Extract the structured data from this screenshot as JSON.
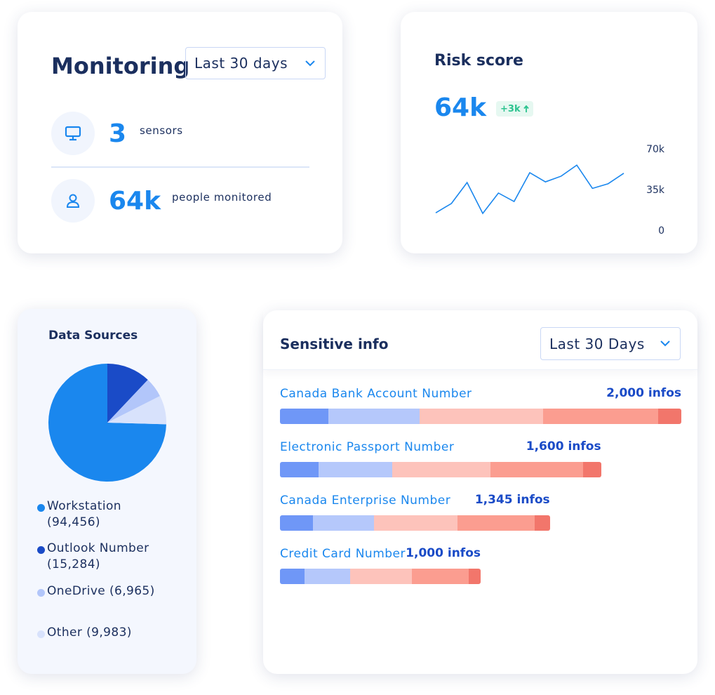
{
  "monitoring": {
    "title": "Monitoring",
    "period": "Last 30 days",
    "stats": [
      {
        "value": "3",
        "label": "sensors"
      },
      {
        "value": "64k",
        "label": "people monitored"
      }
    ]
  },
  "risk_score": {
    "title": "Risk score",
    "value": "64k",
    "change": "+3k"
  },
  "chart_data": [
    {
      "type": "line",
      "categories": [
        null,
        null,
        null,
        null,
        null,
        null,
        null,
        null,
        null,
        null,
        null,
        null,
        null
      ],
      "values": [
        15000,
        23000,
        41000,
        14500,
        32000,
        24700,
        49500,
        41600,
        46500,
        56000,
        36000,
        40000,
        49000
      ],
      "color": "#1a87ee",
      "ylim": [
        0,
        70000
      ],
      "yticks": [
        0,
        {
          "value": 35000,
          "label": "35k"
        },
        {
          "value": 70000,
          "label": "70k"
        }
      ]
    },
    {
      "type": "pie",
      "title": "Data Sources",
      "categories": [
        "Workstation",
        "Outlook Number",
        "OneDrive",
        "Other"
      ],
      "values": [
        94456,
        15284,
        6965,
        9983
      ],
      "value_labels": [
        "(94,456)",
        "(15,284)",
        "(6,965)",
        "(9,983)"
      ],
      "colors": [
        "#1a87ee",
        "#1a4bc7",
        "#b2c6fa",
        "#d8e2fc"
      ]
    },
    {
      "type": "bar",
      "orientation": "horizontal",
      "stacked": true,
      "title": "Sensitive info",
      "period": "Last 30 Days",
      "categories": [
        "Canada Bank Account Number",
        "Electronic Passport Number",
        "Canada Enterprise Number",
        "Credit Card Number"
      ],
      "values": [
        2000,
        1600,
        1345,
        1000
      ],
      "value_labels": [
        "2,000 infos",
        "1,600 infos",
        "1,345 infos",
        "1,000 infos"
      ],
      "xlim": [
        0,
        2000
      ],
      "series": [
        {
          "color": "#6f97f7",
          "values": [
            240,
            194,
            163,
            123
          ]
        },
        {
          "color": "#b5c8fb",
          "values": [
            455,
            366,
            307,
            225
          ]
        },
        {
          "color": "#fdc3bb",
          "values": [
            615,
            490,
            415,
            308
          ]
        },
        {
          "color": "#fb9d90",
          "values": [
            575,
            459,
            386,
            286
          ]
        },
        {
          "color": "#f2766b",
          "values": [
            115,
            91,
            74,
            58
          ]
        }
      ]
    }
  ]
}
